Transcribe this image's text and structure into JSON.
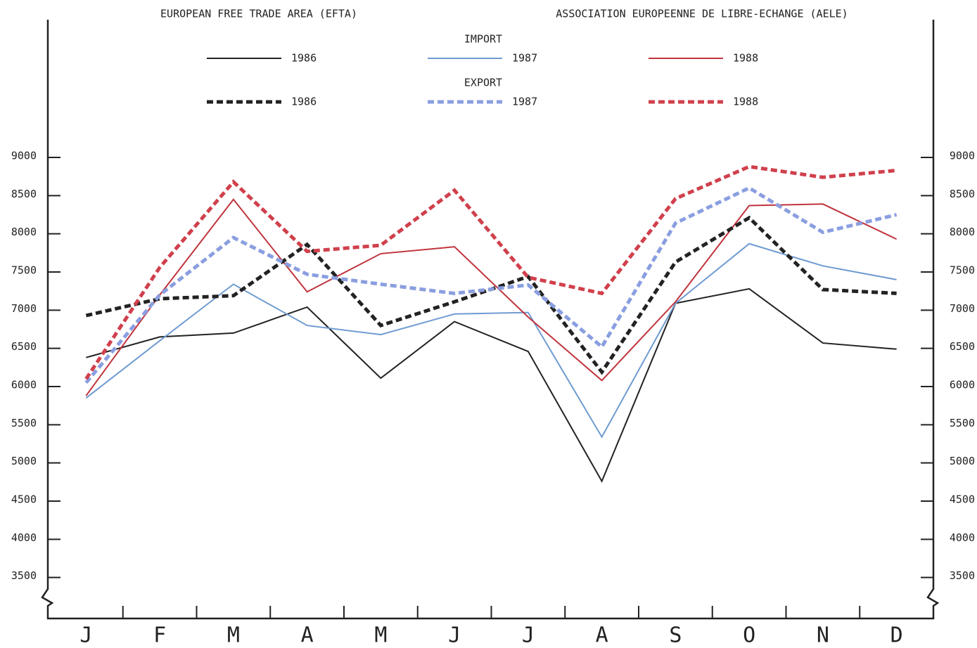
{
  "chart_data": {
    "type": "line",
    "titles": [
      "EUROPEAN FREE TRADE AREA (EFTA)",
      "ASSOCIATION EUROPEENNE DE LIBRE-ECHANGE (AELE)"
    ],
    "legend_groups": [
      "IMPORT",
      "EXPORT"
    ],
    "categories": [
      "J",
      "F",
      "M",
      "A",
      "M",
      "J",
      "J",
      "A",
      "S",
      "O",
      "N",
      "D"
    ],
    "series": [
      {
        "name": "1986",
        "group": 0,
        "color": "#222222",
        "dashed": false,
        "values": [
          6380,
          6650,
          6700,
          7040,
          6110,
          6850,
          6460,
          4760,
          7090,
          7280,
          6570,
          6490
        ]
      },
      {
        "name": "1987",
        "group": 0,
        "color": "#6f9bd1",
        "dashed": false,
        "values": [
          5850,
          6600,
          7340,
          6800,
          6680,
          6950,
          6970,
          5340,
          7090,
          7870,
          7580,
          7400
        ]
      },
      {
        "name": "1988",
        "group": 0,
        "color": "#c0343d",
        "dashed": false,
        "values": [
          5880,
          7200,
          8450,
          7240,
          7740,
          7830,
          6910,
          6080,
          7110,
          8370,
          8390,
          7930
        ]
      },
      {
        "name": "1986",
        "group": 1,
        "color": "#222222",
        "dashed": true,
        "values": [
          6930,
          7150,
          7190,
          7860,
          6800,
          7110,
          7440,
          6190,
          7630,
          8210,
          7270,
          7220
        ]
      },
      {
        "name": "1987",
        "group": 1,
        "color": "#8a9ee0",
        "dashed": true,
        "values": [
          6050,
          7200,
          7950,
          7470,
          7340,
          7220,
          7330,
          6520,
          8140,
          8600,
          8020,
          8250
        ]
      },
      {
        "name": "1988",
        "group": 1,
        "color": "#d0404c",
        "dashed": true,
        "values": [
          6100,
          7560,
          8680,
          7770,
          7850,
          8570,
          7430,
          7220,
          8460,
          8880,
          8740,
          8830
        ]
      }
    ],
    "ylim": [
      3000,
      9000
    ],
    "yticks": [
      3500,
      4000,
      4500,
      5000,
      5500,
      6000,
      6500,
      7000,
      7500,
      8000,
      8500,
      9000
    ]
  }
}
